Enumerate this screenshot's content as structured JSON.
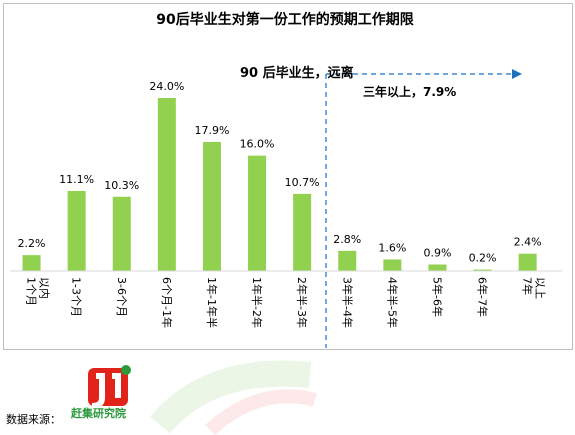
{
  "chart_data": {
    "type": "bar",
    "title": "90后毕业生对第一份工作的预期工作期限",
    "categories": [
      "1个月以内",
      "1-3个月",
      "3-6个月",
      "6个月-1年",
      "1年-1年半",
      "1年半-2年",
      "2年半-3年",
      "3年半-4年",
      "4年半-5年",
      "5年-6年",
      "6年-7年",
      "7年以上"
    ],
    "values": [
      2.2,
      11.1,
      10.3,
      24.0,
      17.9,
      16.0,
      10.7,
      2.8,
      1.6,
      0.9,
      0.2,
      2.4
    ],
    "value_labels": [
      "2.2%",
      "11.1%",
      "10.3%",
      "24.0%",
      "17.9%",
      "16.0%",
      "10.7%",
      "2.8%",
      "1.6%",
      "0.9%",
      "0.2%",
      "2.4%"
    ],
    "ylim": [
      0,
      25
    ],
    "bar_color": "#92d050",
    "grid": false,
    "annotations": {
      "arrow_label": "90 后毕业生，远离",
      "arrow_sub_label": "三年以上，7.9%"
    }
  },
  "footer": {
    "source_label": "数据来源：",
    "logo_text": "赶集研究院"
  }
}
